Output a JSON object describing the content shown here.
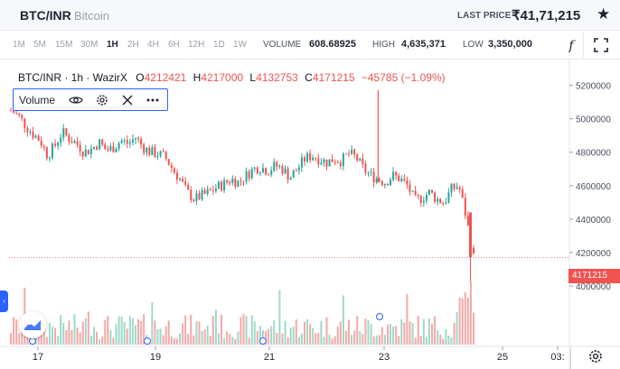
{
  "header": {
    "pair": "BTC/INR",
    "pair_name": "Bitcoin",
    "last_price_label": "LAST PRICE",
    "last_price": "₹41,71,215",
    "star_icon": "star-icon"
  },
  "timeframes": [
    "1M",
    "5M",
    "15M",
    "30M",
    "1H",
    "2H",
    "4H",
    "6H",
    "12H",
    "1D",
    "1W"
  ],
  "active_timeframe": "1H",
  "stats": {
    "volume_label": "VOLUME",
    "volume": "608.68925",
    "high_label": "HIGH",
    "high": "4,635,371",
    "low_label": "LOW",
    "low": "3,350,000"
  },
  "legend": {
    "symbol": "BTC/INR · 1h · WazirX",
    "o_label": "O",
    "o": "4212421",
    "h_label": "H",
    "h": "4217000",
    "l_label": "L",
    "l": "4132753",
    "c_label": "C",
    "c": "4171215",
    "change": "−45785 (−1.09%)"
  },
  "volume_study": {
    "label": "Volume"
  },
  "colors": {
    "up": "#26a69a",
    "down": "#ef5350",
    "up_vol": "#9fd8c9",
    "down_vol": "#f4a9a8",
    "accent": "#2962ff"
  },
  "chart_data": {
    "type": "candlestick",
    "ylim": [
      3650000,
      5300000
    ],
    "y_ticks": [
      "5200000",
      "5000000",
      "4800000",
      "4600000",
      "4400000",
      "4200000",
      "4000000"
    ],
    "x_ticks": [
      "17",
      "19",
      "21",
      "23",
      "25",
      "03:"
    ],
    "price_tag": "4171215",
    "close_path": [
      [
        0,
        5050000
      ],
      [
        1,
        5020000
      ],
      [
        2,
        4960000
      ],
      [
        3,
        4910000
      ],
      [
        4,
        4870000
      ],
      [
        5,
        4780000
      ],
      [
        6,
        4840000
      ],
      [
        7,
        4920000
      ],
      [
        8,
        4880000
      ],
      [
        9,
        4850000
      ],
      [
        10,
        4800000
      ],
      [
        11,
        4820000
      ],
      [
        12,
        4860000
      ],
      [
        13,
        4810000
      ],
      [
        14,
        4830000
      ],
      [
        15,
        4870000
      ],
      [
        16,
        4850000
      ],
      [
        17,
        4890000
      ],
      [
        18,
        4830000
      ],
      [
        19,
        4800000
      ],
      [
        20,
        4790000
      ],
      [
        21,
        4770000
      ],
      [
        22,
        4700000
      ],
      [
        23,
        4640000
      ],
      [
        24,
        4560000
      ],
      [
        25,
        4520000
      ],
      [
        26,
        4540000
      ],
      [
        27,
        4560000
      ],
      [
        28,
        4590000
      ],
      [
        29,
        4610000
      ],
      [
        30,
        4640000
      ],
      [
        31,
        4620000
      ],
      [
        32,
        4660000
      ],
      [
        33,
        4700000
      ],
      [
        34,
        4710000
      ],
      [
        35,
        4690000
      ],
      [
        36,
        4720000
      ],
      [
        37,
        4700000
      ],
      [
        38,
        4650000
      ],
      [
        39,
        4700000
      ],
      [
        40,
        4760000
      ],
      [
        41,
        4780000
      ],
      [
        42,
        4760000
      ],
      [
        43,
        4740000
      ],
      [
        44,
        4760000
      ],
      [
        45,
        4750000
      ],
      [
        46,
        4790000
      ],
      [
        47,
        4770000
      ],
      [
        48,
        4700000
      ],
      [
        49,
        4660000
      ],
      [
        50,
        4640000
      ],
      [
        51,
        4620000
      ],
      [
        52,
        4660000
      ],
      [
        53,
        4640000
      ],
      [
        54,
        4600000
      ],
      [
        55,
        4510000
      ],
      [
        56,
        4530000
      ],
      [
        57,
        4560000
      ],
      [
        58,
        4520000
      ],
      [
        59,
        4500000
      ],
      [
        60,
        4580000
      ],
      [
        61,
        4600000
      ],
      [
        62,
        4410000
      ],
      [
        63,
        4171215
      ]
    ],
    "spike": {
      "index": 50,
      "high": 5170000
    }
  },
  "ui": {
    "left_toggle": "›",
    "eye_icon": "eye-icon",
    "settings_icon": "settings-icon",
    "close_icon": "close-icon",
    "more_icon": "more-icon",
    "fullscreen_icon": "fullscreen-icon",
    "fx_icon": "indicators-icon",
    "fx_text": "f",
    "gear_icon": "gear-icon",
    "logo_icon": "tradingview-logo-icon"
  }
}
